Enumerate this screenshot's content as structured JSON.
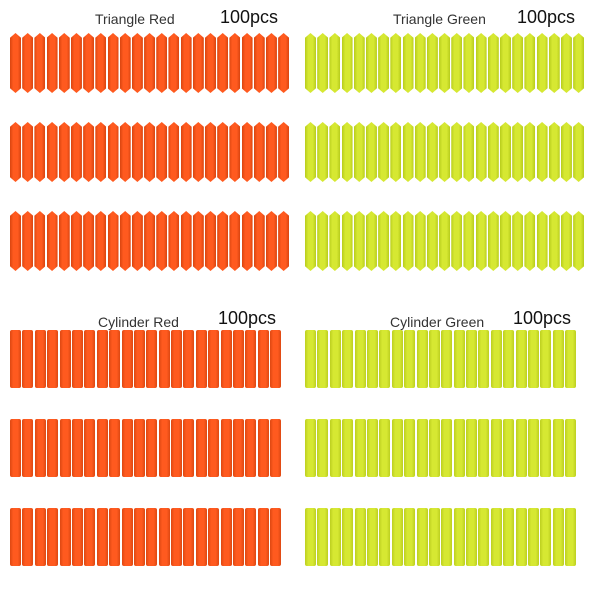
{
  "panels": [
    {
      "id": "triangle-red",
      "label": "Triangle Red",
      "count": "100pcs",
      "shape": "triangle",
      "color": "#ff5a1f",
      "shade": "#d94510"
    },
    {
      "id": "triangle-green",
      "label": "Triangle Green",
      "count": "100pcs",
      "shape": "triangle",
      "color": "#d6e832",
      "shade": "#b7cc1c"
    },
    {
      "id": "cylinder-red",
      "label": "Cylinder Red",
      "count": "100pcs",
      "shape": "cylinder",
      "color": "#ff5a1f",
      "shade": "#dd4812"
    },
    {
      "id": "cylinder-green",
      "label": "Cylinder Green",
      "count": "100pcs",
      "shape": "cylinder",
      "color": "#d6e832",
      "shade": "#bccf20"
    }
  ]
}
